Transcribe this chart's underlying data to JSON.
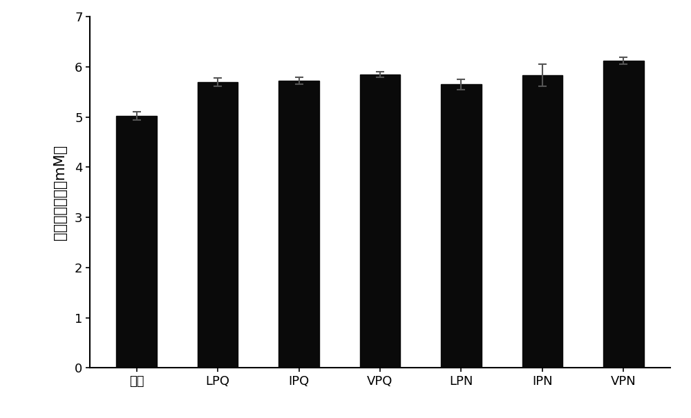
{
  "categories": [
    "空白",
    "LPQ",
    "IPQ",
    "VPQ",
    "LPN",
    "IPN",
    "VPN"
  ],
  "values": [
    5.02,
    5.7,
    5.72,
    5.85,
    5.65,
    5.83,
    6.12
  ],
  "errors": [
    0.08,
    0.08,
    0.07,
    0.06,
    0.1,
    0.22,
    0.07
  ],
  "bar_color": "#0a0a0a",
  "bar_width": 0.5,
  "ylabel": "葡萄糖摄取量（mM）",
  "ylim": [
    0,
    7
  ],
  "yticks": [
    0,
    1,
    2,
    3,
    4,
    5,
    6,
    7
  ],
  "background_color": "#ffffff",
  "ylabel_fontsize": 15,
  "tick_fontsize": 13,
  "error_capsize": 4,
  "error_color": "#555555",
  "error_linewidth": 1.5
}
